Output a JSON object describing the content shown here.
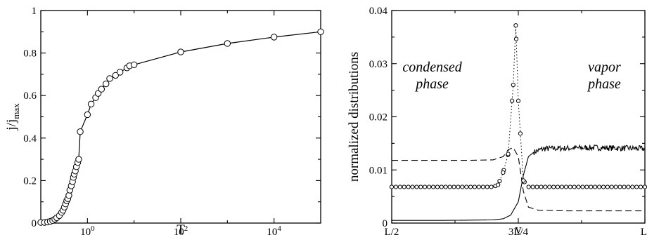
{
  "chart_data": [
    {
      "type": "line",
      "xscale": "log",
      "xlim": [
        0.1,
        100000
      ],
      "ylim": [
        0,
        1
      ],
      "xlabel": "T",
      "ylabel": "j/j",
      "ylabel_sub": "max",
      "y_ticks": [
        "0",
        "0.2",
        "0.4",
        "0.6",
        "0.8",
        "1"
      ],
      "x_ticks": [
        {
          "value": 1,
          "base": "10",
          "exp": "0"
        },
        {
          "value": 100,
          "base": "10",
          "exp": "2"
        },
        {
          "value": 10000,
          "base": "10",
          "exp": "4"
        }
      ],
      "grid": false,
      "markers": "open-circle",
      "series": [
        {
          "x": [
            0.1,
            0.12,
            0.14,
            0.16,
            0.18,
            0.2,
            0.22,
            0.25,
            0.28,
            0.3,
            0.32,
            0.34,
            0.36,
            0.38,
            0.4,
            0.42,
            0.45,
            0.48,
            0.5,
            0.52,
            0.55,
            0.58,
            0.62,
            0.65,
            0.7,
            1.0,
            1.2,
            1.5,
            1.7,
            2.0,
            2.5,
            3.0,
            4.0,
            5.0,
            7.0,
            8.0,
            10,
            100,
            1000,
            10000,
            100000
          ],
          "y": [
            0.003,
            0.003,
            0.005,
            0.008,
            0.012,
            0.018,
            0.025,
            0.035,
            0.05,
            0.06,
            0.075,
            0.09,
            0.105,
            0.115,
            0.13,
            0.155,
            0.175,
            0.195,
            0.215,
            0.23,
            0.245,
            0.265,
            0.285,
            0.3,
            0.43,
            0.51,
            0.56,
            0.59,
            0.61,
            0.63,
            0.655,
            0.68,
            0.695,
            0.71,
            0.73,
            0.74,
            0.745,
            0.805,
            0.845,
            0.875,
            0.9
          ]
        }
      ]
    },
    {
      "type": "line",
      "xlim": [
        0,
        1
      ],
      "ylim": [
        0,
        0.04
      ],
      "xlabel": "y",
      "ylabel": "normalized distributions",
      "x_ticks": [
        {
          "value": 0,
          "label": "L/2"
        },
        {
          "value": 0.5,
          "label": "3L/4"
        },
        {
          "value": 1,
          "label": "L"
        }
      ],
      "y_ticks": [
        "0",
        "0.01",
        "0.02",
        "0.03",
        "0.04"
      ],
      "grid": false,
      "annotations": [
        {
          "lines": [
            "condensed",
            "phase"
          ],
          "x": 0.16,
          "y": 0.0285
        },
        {
          "lines": [
            "vapor",
            "phase"
          ],
          "x": 0.84,
          "y": 0.0285
        }
      ],
      "series": [
        {
          "style": "solid",
          "x": [
            0,
            0.2,
            0.4,
            0.44,
            0.47,
            0.5,
            0.52,
            0.54,
            0.56,
            0.58,
            0.6,
            0.8,
            1.0
          ],
          "y": [
            0.0005,
            0.0005,
            0.0006,
            0.0008,
            0.0015,
            0.004,
            0.009,
            0.0125,
            0.0133,
            0.0137,
            0.014,
            0.0142,
            0.014
          ]
        },
        {
          "style": "dashed",
          "x": [
            0,
            0.3,
            0.4,
            0.44,
            0.46,
            0.48,
            0.5,
            0.52,
            0.54,
            0.58,
            0.7,
            1.0
          ],
          "y": [
            0.0118,
            0.0118,
            0.0119,
            0.0125,
            0.0138,
            0.0142,
            0.0125,
            0.006,
            0.003,
            0.0024,
            0.0023,
            0.0023
          ]
        },
        {
          "style": "dotted-circle",
          "x": [
            0,
            0.4,
            0.42,
            0.44,
            0.46,
            0.48,
            0.49,
            0.5,
            0.52,
            0.54,
            1.0
          ],
          "y": [
            0.0068,
            0.0068,
            0.0072,
            0.0095,
            0.013,
            0.026,
            0.0372,
            0.023,
            0.008,
            0.0068,
            0.0068
          ]
        }
      ]
    }
  ]
}
